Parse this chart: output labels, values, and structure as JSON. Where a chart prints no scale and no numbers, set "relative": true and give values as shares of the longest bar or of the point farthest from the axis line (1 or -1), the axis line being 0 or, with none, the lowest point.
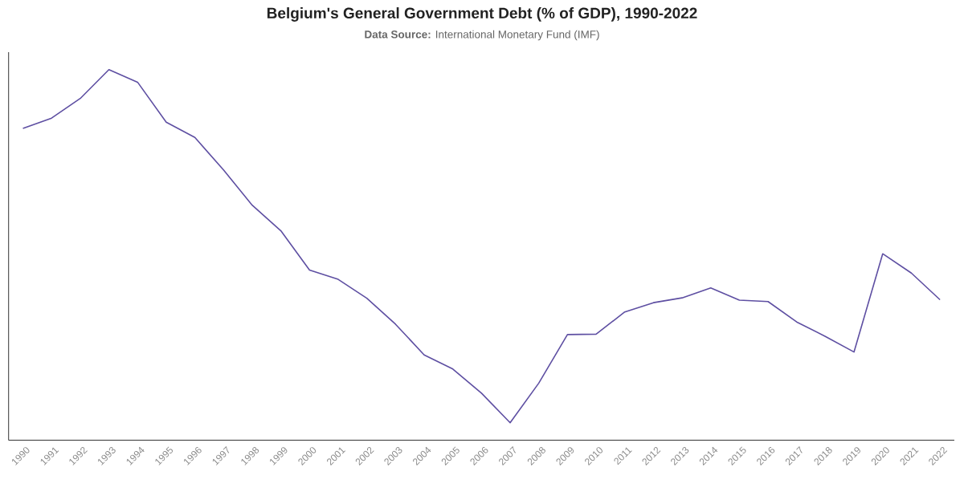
{
  "chart_data": {
    "type": "line",
    "title": "Belgium's General Government Debt (% of GDP), 1990-2022",
    "subtitle": "**Data Source:** International Monetary Fund (IMF)",
    "categories": [
      "1990",
      "1991",
      "1992",
      "1993",
      "1994",
      "1995",
      "1996",
      "1997",
      "1998",
      "1999",
      "2000",
      "2001",
      "2002",
      "2003",
      "2004",
      "2005",
      "2006",
      "2007",
      "2008",
      "2009",
      "2010",
      "2011",
      "2012",
      "2013",
      "2014",
      "2015",
      "2016",
      "2017",
      "2018",
      "2019",
      "2020",
      "2021",
      "2022"
    ],
    "relative": true,
    "series": [
      {
        "color": "#5e4fa2",
        "values": [
          0.841,
          0.869,
          0.922,
          1,
          0.966,
          0.858,
          0.817,
          0.729,
          0.634,
          0.565,
          0.459,
          0.434,
          0.383,
          0.313,
          0.23,
          0.192,
          0.127,
          0.047,
          0.154,
          0.285,
          0.286,
          0.346,
          0.371,
          0.384,
          0.411,
          0.378,
          0.374,
          0.319,
          0.28,
          0.238,
          0.503,
          0.451,
          0.379
        ]
      }
    ],
    "marker": "none",
    "line_style": "solid"
  }
}
